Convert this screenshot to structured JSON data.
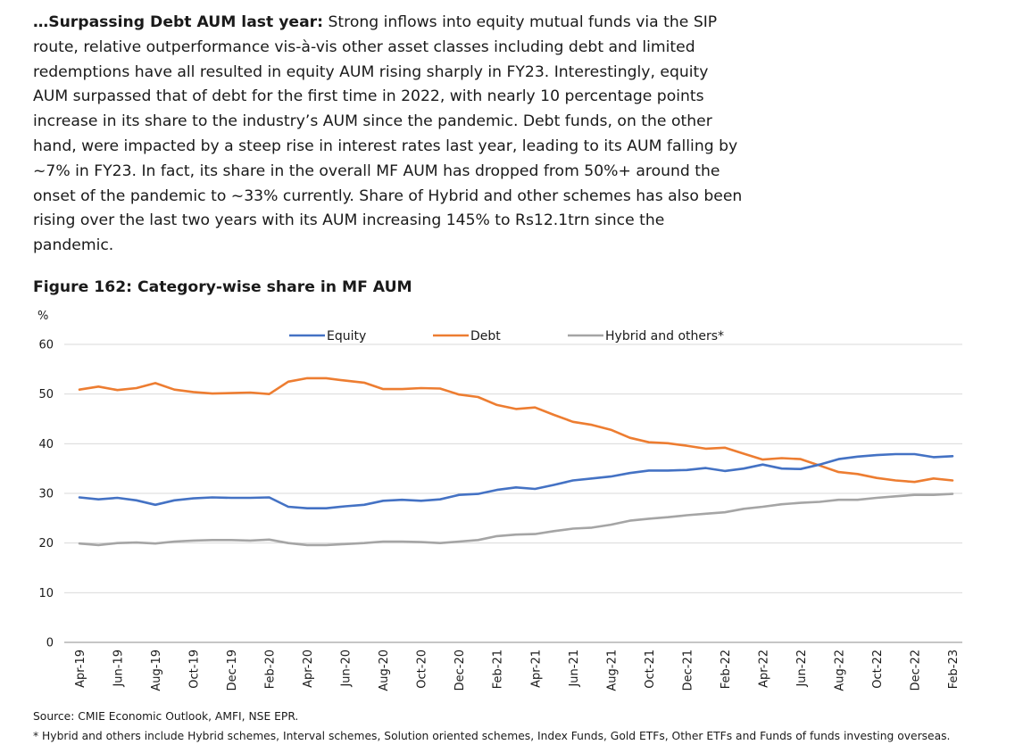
{
  "paragraph": {
    "lead": "…Surpassing Debt AUM last year:",
    "text": " Strong inflows into equity mutual funds via the SIP route, relative outperformance vis-à-vis other asset classes including debt and limited redemptions have all resulted in equity AUM rising sharply in FY23. Interestingly, equity AUM surpassed that of debt for the first time in 2022, with nearly 10 percentage points increase in its share to the industry’s AUM since the pandemic. Debt funds, on the other hand, were impacted by a steep rise in interest rates last year, leading to its AUM falling by ~7% in FY23. In fact, its share in the overall MF AUM has dropped from 50%+ around the onset of the pandemic to ~33% currently. Share of Hybrid and other schemes has also been rising over the last two years with its AUM increasing 145% to Rs12.1trn since the pandemic."
  },
  "figure_title": "Figure 162: Category-wise share in MF AUM",
  "source_note": "Source: CMIE Economic Outlook, AMFI, NSE EPR.",
  "footnote": "* Hybrid and others include Hybrid schemes, Interval schemes, Solution oriented schemes, Index Funds, Gold ETFs, Other ETFs and Funds of funds investing overseas.",
  "chart_data": {
    "type": "line",
    "ylabel": "%",
    "ylim": [
      0,
      60
    ],
    "yticks": [
      0,
      10,
      20,
      30,
      40,
      50,
      60
    ],
    "grid": true,
    "legend_position": "top",
    "x": [
      "Apr-19",
      "May-19",
      "Jun-19",
      "Jul-19",
      "Aug-19",
      "Sep-19",
      "Oct-19",
      "Nov-19",
      "Dec-19",
      "Jan-20",
      "Feb-20",
      "Mar-20",
      "Apr-20",
      "May-20",
      "Jun-20",
      "Jul-20",
      "Aug-20",
      "Sep-20",
      "Oct-20",
      "Nov-20",
      "Dec-20",
      "Jan-21",
      "Feb-21",
      "Mar-21",
      "Apr-21",
      "May-21",
      "Jun-21",
      "Jul-21",
      "Aug-21",
      "Sep-21",
      "Oct-21",
      "Nov-21",
      "Dec-21",
      "Jan-22",
      "Feb-22",
      "Mar-22",
      "Apr-22",
      "May-22",
      "Jun-22",
      "Jul-22",
      "Aug-22",
      "Sep-22",
      "Oct-22",
      "Nov-22",
      "Dec-22",
      "Jan-23",
      "Feb-23"
    ],
    "xtick_labels": [
      "Apr-19",
      "Jun-19",
      "Aug-19",
      "Oct-19",
      "Dec-19",
      "Feb-20",
      "Apr-20",
      "Jun-20",
      "Aug-20",
      "Oct-20",
      "Dec-20",
      "Feb-21",
      "Apr-21",
      "Jun-21",
      "Aug-21",
      "Oct-21",
      "Dec-21",
      "Feb-22",
      "Apr-22",
      "Jun-22",
      "Aug-22",
      "Oct-22",
      "Dec-22",
      "Feb-23"
    ],
    "series": [
      {
        "name": "Equity",
        "color": "#4472c4",
        "values": [
          29.2,
          28.8,
          29.1,
          28.6,
          27.7,
          28.6,
          29.0,
          29.2,
          29.1,
          29.1,
          29.2,
          27.3,
          27.0,
          27.0,
          27.4,
          27.7,
          28.5,
          28.7,
          28.5,
          28.8,
          29.7,
          29.9,
          30.7,
          31.2,
          30.9,
          31.7,
          32.6,
          33.0,
          33.4,
          34.1,
          34.6,
          34.6,
          34.7,
          35.1,
          34.5,
          35.0,
          35.8,
          35.0,
          34.9,
          35.8,
          36.9,
          37.4,
          37.7,
          37.9,
          37.9,
          37.3,
          37.5
        ]
      },
      {
        "name": "Debt",
        "color": "#ed7d31",
        "values": [
          50.9,
          51.5,
          50.8,
          51.2,
          52.2,
          50.9,
          50.4,
          50.1,
          50.2,
          50.3,
          50.0,
          52.5,
          53.2,
          53.2,
          52.7,
          52.3,
          51.0,
          51.0,
          51.2,
          51.1,
          49.9,
          49.4,
          47.8,
          47.0,
          47.3,
          45.8,
          44.4,
          43.8,
          42.8,
          41.2,
          40.3,
          40.1,
          39.6,
          39.0,
          39.2,
          38.0,
          36.8,
          37.1,
          36.9,
          35.6,
          34.3,
          33.9,
          33.1,
          32.6,
          32.3,
          33.0,
          32.6
        ]
      },
      {
        "name": "Hybrid and others*",
        "color": "#a5a5a5",
        "values": [
          19.9,
          19.6,
          20.0,
          20.1,
          19.9,
          20.3,
          20.5,
          20.6,
          20.6,
          20.5,
          20.7,
          20.0,
          19.6,
          19.6,
          19.8,
          20.0,
          20.3,
          20.3,
          20.2,
          20.0,
          20.3,
          20.6,
          21.4,
          21.7,
          21.8,
          22.4,
          22.9,
          23.1,
          23.7,
          24.5,
          24.9,
          25.2,
          25.6,
          25.9,
          26.2,
          26.9,
          27.3,
          27.8,
          28.1,
          28.3,
          28.7,
          28.7,
          29.1,
          29.4,
          29.7,
          29.7,
          29.9
        ]
      }
    ]
  }
}
